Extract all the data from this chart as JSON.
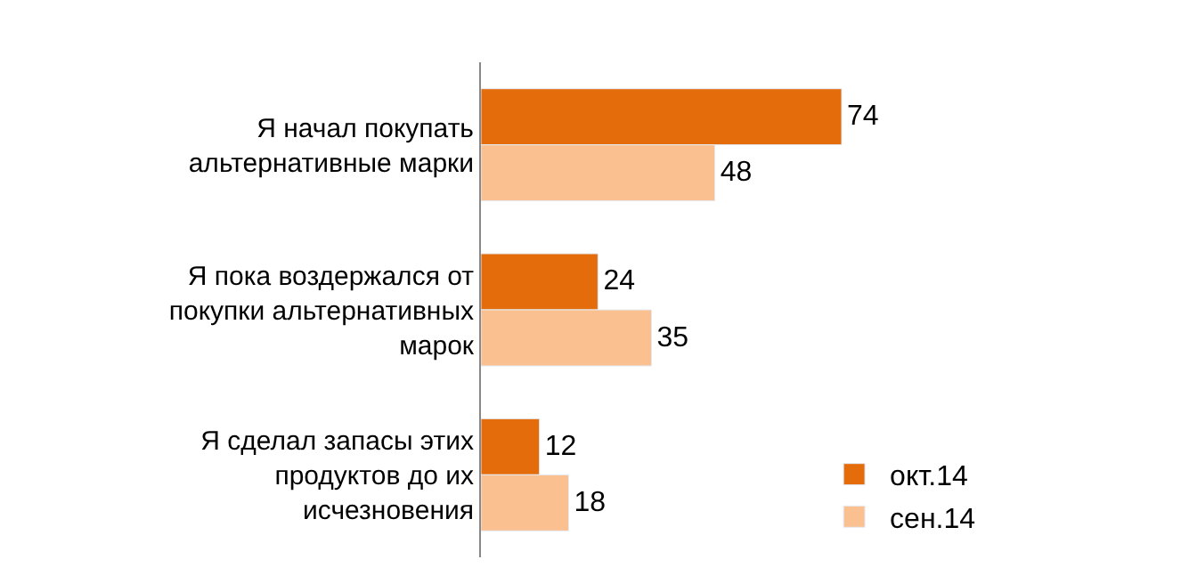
{
  "chart_data": {
    "type": "bar",
    "orientation": "horizontal",
    "categories": [
      "Я начал покупать альтернативные марки",
      "Я пока воздержался от покупки альтернативных марок",
      "Я сделал запасы этих продуктов до их исчезновения"
    ],
    "series": [
      {
        "name": "окт.14",
        "color": "#e46c0a",
        "values": [
          74,
          24,
          12
        ]
      },
      {
        "name": "сен.14",
        "color": "#fac090",
        "values": [
          48,
          35,
          18
        ]
      }
    ],
    "data_labels": true,
    "legend": "bottom right",
    "tick_labels": "y"
  }
}
